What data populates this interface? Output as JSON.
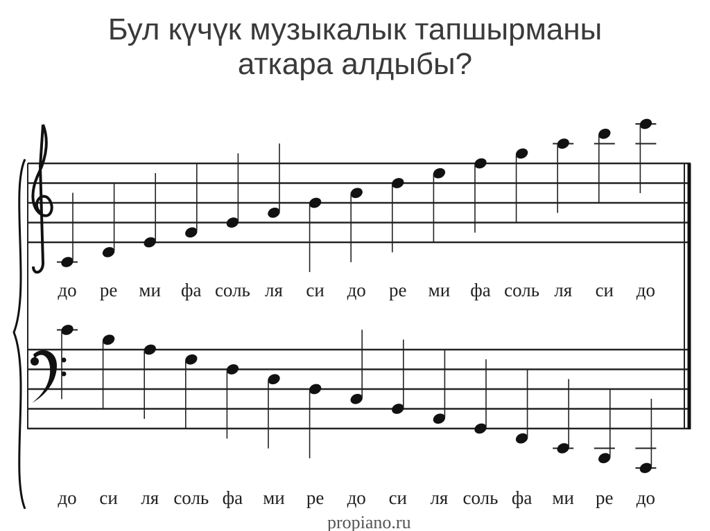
{
  "title": {
    "line1": "Бул күчүк музыкалык тапшырманы",
    "line2": "аткара алдыбы?"
  },
  "treble_staff": {
    "clef": "treble-clef-icon",
    "notes": [
      {
        "pitch": "C4",
        "label": "до"
      },
      {
        "pitch": "D4",
        "label": "ре"
      },
      {
        "pitch": "E4",
        "label": "ми"
      },
      {
        "pitch": "F4",
        "label": "фа"
      },
      {
        "pitch": "G4",
        "label": "соль"
      },
      {
        "pitch": "A4",
        "label": "ля"
      },
      {
        "pitch": "B4",
        "label": "си"
      },
      {
        "pitch": "C5",
        "label": "до"
      },
      {
        "pitch": "D5",
        "label": "ре"
      },
      {
        "pitch": "E5",
        "label": "ми"
      },
      {
        "pitch": "F5",
        "label": "фа"
      },
      {
        "pitch": "G5",
        "label": "соль"
      },
      {
        "pitch": "A5",
        "label": "ля"
      },
      {
        "pitch": "B5",
        "label": "си"
      },
      {
        "pitch": "C6",
        "label": "до"
      }
    ]
  },
  "bass_staff": {
    "clef": "bass-clef-icon",
    "notes": [
      {
        "pitch": "C4",
        "label": "до"
      },
      {
        "pitch": "B3",
        "label": "си"
      },
      {
        "pitch": "A3",
        "label": "ля"
      },
      {
        "pitch": "G3",
        "label": "соль"
      },
      {
        "pitch": "F3",
        "label": "фа"
      },
      {
        "pitch": "E3",
        "label": "ми"
      },
      {
        "pitch": "D3",
        "label": "ре"
      },
      {
        "pitch": "C3",
        "label": "до"
      },
      {
        "pitch": "B2",
        "label": "си"
      },
      {
        "pitch": "A2",
        "label": "ля"
      },
      {
        "pitch": "G2",
        "label": "соль"
      },
      {
        "pitch": "F2",
        "label": "фа"
      },
      {
        "pitch": "E2",
        "label": "ми"
      },
      {
        "pitch": "D2",
        "label": "ре"
      },
      {
        "pitch": "C2",
        "label": "до"
      }
    ]
  },
  "watermark": "propiano.ru"
}
